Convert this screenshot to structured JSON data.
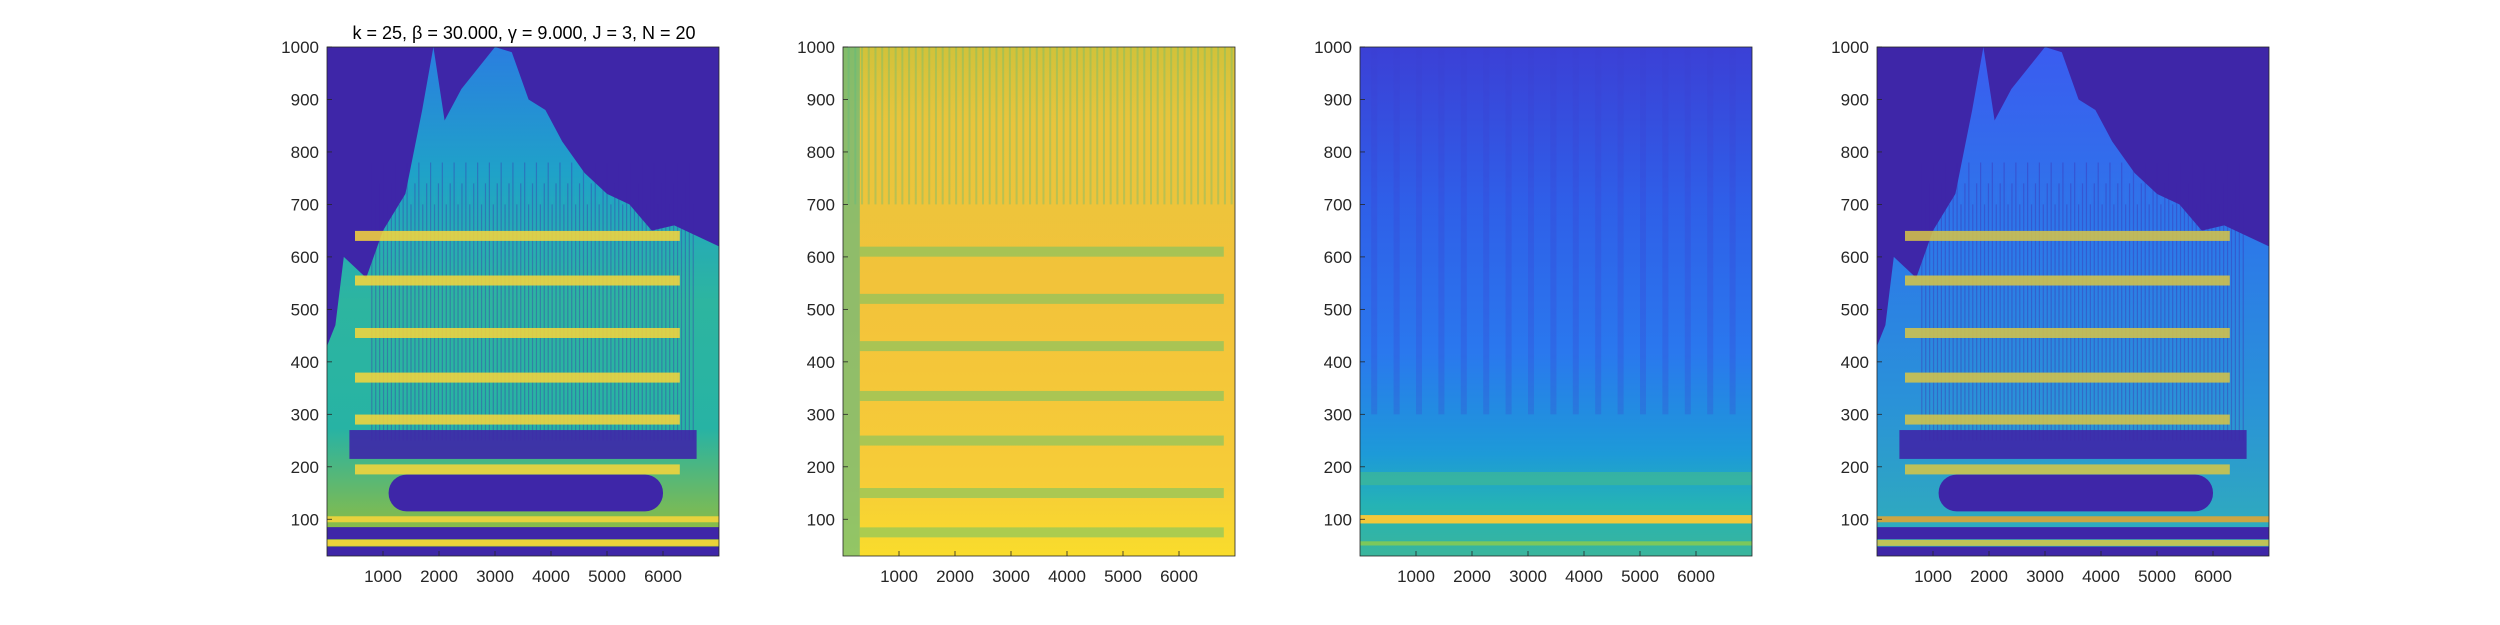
{
  "figure": {
    "title": "k = 25, β = 30.000, γ = 9.000, J = 3, N = 20"
  },
  "chart_data": [
    {
      "type": "heatmap",
      "panel": 1,
      "title": "k = 25, β = 30.000, γ = 9.000, J = 3, N = 20",
      "xlim": [
        0,
        7000
      ],
      "ylim": [
        30,
        1000
      ],
      "xticks": [
        1000,
        2000,
        3000,
        4000,
        5000,
        6000
      ],
      "yticks": [
        100,
        200,
        300,
        400,
        500,
        600,
        700,
        800,
        900,
        1000
      ],
      "xlabel": "",
      "ylabel": "",
      "colormap": "parula",
      "background_color": "#3e26a8",
      "description_color_levels": "masked spectrogram: dark-blue background above harmonic envelope, bright yellow-green harmonic bands",
      "harmonic_bands_y": [
        55,
        100,
        195,
        290,
        370,
        455,
        555,
        640
      ]
    },
    {
      "type": "heatmap",
      "panel": 2,
      "xlim": [
        0,
        7000
      ],
      "ylim": [
        30,
        1000
      ],
      "xticks": [
        1000,
        2000,
        3000,
        4000,
        5000,
        6000
      ],
      "yticks": [
        100,
        200,
        300,
        400,
        500,
        600,
        700,
        800,
        900,
        1000
      ],
      "xlabel": "",
      "ylabel": "",
      "colormap": "parula",
      "background_color": "#f5c437",
      "harmonic_bands_y": [
        75,
        150,
        250,
        335,
        430,
        520,
        610
      ]
    },
    {
      "type": "heatmap",
      "panel": 3,
      "xlim": [
        0,
        7000
      ],
      "ylim": [
        30,
        1000
      ],
      "xticks": [
        1000,
        2000,
        3000,
        4000,
        5000,
        6000
      ],
      "yticks": [
        100,
        200,
        300,
        400,
        500,
        600,
        700,
        800,
        900,
        1000
      ],
      "xlabel": "",
      "ylabel": "",
      "colormap": "parula",
      "background_color": "#2c6df0",
      "harmonic_bands_y": [
        55,
        100,
        180
      ]
    },
    {
      "type": "heatmap",
      "panel": 4,
      "xlim": [
        0,
        7000
      ],
      "ylim": [
        30,
        1000
      ],
      "xticks": [
        1000,
        2000,
        3000,
        4000,
        5000,
        6000
      ],
      "yticks": [
        100,
        200,
        300,
        400,
        500,
        600,
        700,
        800,
        900,
        1000
      ],
      "xlabel": "",
      "ylabel": "",
      "colormap": "parula",
      "background_color": "#3e26a8",
      "harmonic_bands_y": [
        55,
        100,
        195,
        290,
        370,
        455,
        555,
        640
      ]
    }
  ]
}
